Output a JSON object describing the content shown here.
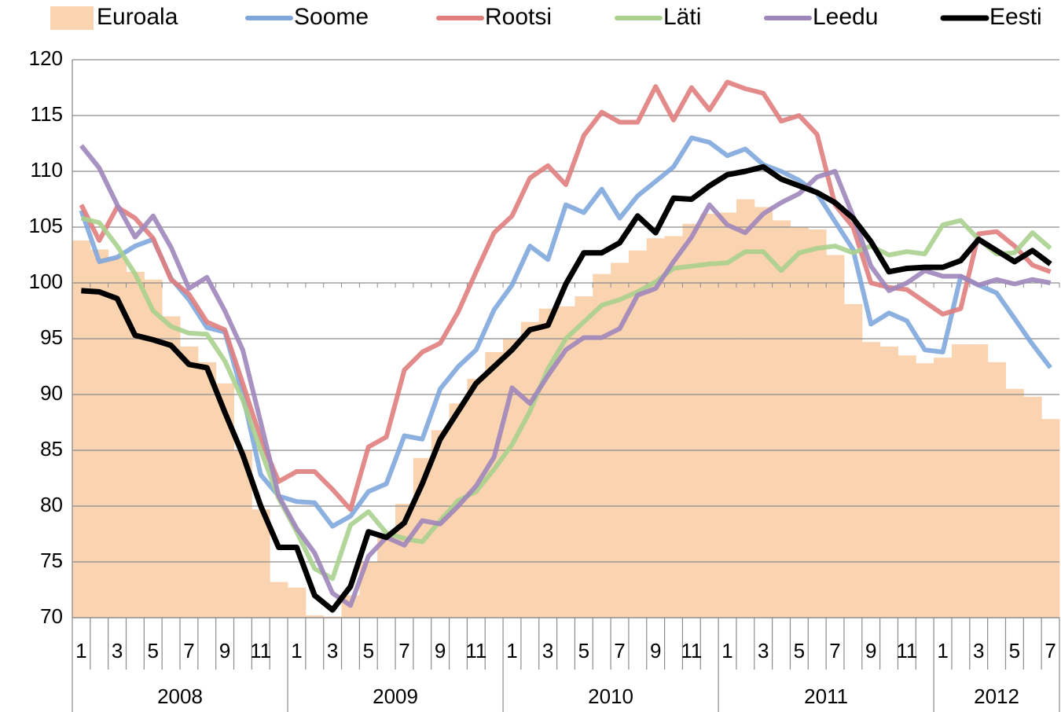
{
  "chart_data": {
    "type": "line",
    "categories": [
      "1",
      null,
      "3",
      null,
      "5",
      null,
      "7",
      null,
      "9",
      null,
      "11",
      null,
      "1",
      null,
      "3",
      null,
      "5",
      null,
      "7",
      null,
      "9",
      null,
      "11",
      null,
      "1",
      null,
      "3",
      null,
      "5",
      null,
      "7",
      null,
      "9",
      null,
      "11",
      null,
      "1",
      null,
      "3",
      null,
      "5",
      null,
      "7",
      null,
      "9",
      null,
      "11",
      null,
      "1",
      null,
      "3",
      null,
      "5",
      null,
      "7"
    ],
    "years": [
      "2008",
      "2009",
      "2010",
      "2011",
      "2012"
    ],
    "ylim": [
      70,
      120
    ],
    "yticks": [
      70,
      75,
      80,
      85,
      90,
      95,
      100,
      105,
      110,
      115,
      120
    ],
    "grid": true,
    "legend": "top",
    "series": [
      {
        "name": "Euroala",
        "type": "bar",
        "color": "#fad3b1",
        "values": [
          103.8,
          103,
          102.3,
          101,
          100.3,
          97,
          94.3,
          92.9,
          91,
          85,
          79.7,
          73.2,
          72.7,
          70.2,
          70.1,
          72,
          75,
          77.5,
          80.2,
          84.3,
          86.8,
          89.2,
          91.4,
          93.8,
          95,
          96.5,
          97.7,
          97.9,
          98.8,
          100.8,
          101.8,
          102.9,
          104,
          104.2,
          105.3,
          106.2,
          106.3,
          107.5,
          106.8,
          105.6,
          105,
          104.8,
          102.5,
          98.1,
          94.7,
          94.3,
          93.5,
          92.8,
          93.3,
          94.5,
          94.5,
          92.9,
          90.5,
          89.8,
          87.8
        ]
      },
      {
        "name": "Soome",
        "type": "line",
        "color": "#7fa7dc",
        "values": [
          106.5,
          101.9,
          102.3,
          103.3,
          103.9,
          100.4,
          98.5,
          96,
          95.6,
          90,
          82.8,
          80.9,
          80.4,
          80.3,
          78.2,
          79.1,
          81.3,
          82,
          86.3,
          86,
          90.5,
          92.5,
          94,
          97.6,
          99.8,
          103.3,
          102.1,
          107,
          106.3,
          108.4,
          105.8,
          107.8,
          109.1,
          110.4,
          113,
          112.6,
          111.4,
          112,
          110.6,
          110,
          109.2,
          108,
          105.5,
          103,
          96.3,
          97.3,
          96.6,
          94,
          93.8,
          100.6,
          99.8,
          99.1,
          96.8,
          94.5,
          92.4
        ]
      },
      {
        "name": "Rootsi",
        "type": "line",
        "color": "#e07d7d",
        "values": [
          107,
          103.8,
          106.8,
          105.8,
          104,
          100.3,
          99,
          96.5,
          95.8,
          91,
          86,
          82.2,
          83.1,
          83.1,
          81.5,
          79.7,
          85.3,
          86.2,
          92.2,
          93.8,
          94.6,
          97.4,
          101,
          104.5,
          106,
          109.4,
          110.5,
          108.8,
          113.2,
          115.3,
          114.4,
          114.4,
          117.6,
          114.6,
          117.5,
          115.5,
          118,
          117.4,
          117,
          114.5,
          115,
          113.3,
          107,
          105,
          100,
          99.6,
          99.4,
          98.3,
          97.2,
          97.7,
          104.4,
          104.6,
          103.3,
          101.6,
          101
        ]
      },
      {
        "name": "Läti",
        "type": "line",
        "color": "#aad08e",
        "values": [
          105.8,
          105.4,
          103.3,
          100.8,
          97.5,
          96.1,
          95.5,
          95.4,
          93,
          89.5,
          85,
          80.7,
          77.7,
          74.4,
          73.5,
          78.3,
          79.5,
          77.6,
          77.1,
          76.8,
          78.7,
          80.5,
          81.3,
          83.3,
          85.5,
          88.5,
          92.3,
          95,
          96.5,
          98,
          98.5,
          99.2,
          100.1,
          101.3,
          101.5,
          101.7,
          101.8,
          102.8,
          102.8,
          101.1,
          102.7,
          103.1,
          103.3,
          102.7,
          103.3,
          102.5,
          102.8,
          102.6,
          105.2,
          105.6,
          103.9,
          102.6,
          102.7,
          104.5,
          103.1
        ]
      },
      {
        "name": "Leedu",
        "type": "line",
        "color": "#9e86ba",
        "values": [
          112.3,
          110.3,
          107,
          104.1,
          106,
          103.2,
          99.5,
          100.5,
          97.5,
          94,
          87.5,
          80.9,
          78,
          75.8,
          72.2,
          71.1,
          75.5,
          77.2,
          76.5,
          78.7,
          78.4,
          80,
          81.8,
          84.4,
          90.6,
          89.2,
          91.7,
          94,
          95.1,
          95.1,
          95.9,
          98.9,
          99.5,
          101.9,
          104.1,
          107,
          105.2,
          104.5,
          106.2,
          107.2,
          108,
          109.5,
          110,
          106,
          101.5,
          99.3,
          100,
          101.1,
          100.6,
          100.6,
          99.8,
          100.3,
          99.9,
          100.3,
          100
        ]
      },
      {
        "name": "Eesti",
        "type": "line",
        "color": "#000000",
        "values": [
          99.3,
          99.2,
          98.6,
          95.3,
          94.9,
          94.4,
          92.7,
          92.4,
          88.4,
          84.6,
          80,
          76.3,
          76.3,
          72,
          70.7,
          72.8,
          77.7,
          77.2,
          78.5,
          82,
          86,
          88.5,
          91,
          92.5,
          94,
          95.8,
          96.2,
          99.9,
          102.7,
          102.7,
          103.6,
          106,
          104.5,
          107.6,
          107.5,
          108.7,
          109.7,
          110,
          110.4,
          109.3,
          108.7,
          108.1,
          107.2,
          105.8,
          103.7,
          101,
          101.3,
          101.4,
          101.4,
          102,
          103.9,
          102.9,
          101.9,
          102.9,
          101.7
        ]
      }
    ]
  }
}
